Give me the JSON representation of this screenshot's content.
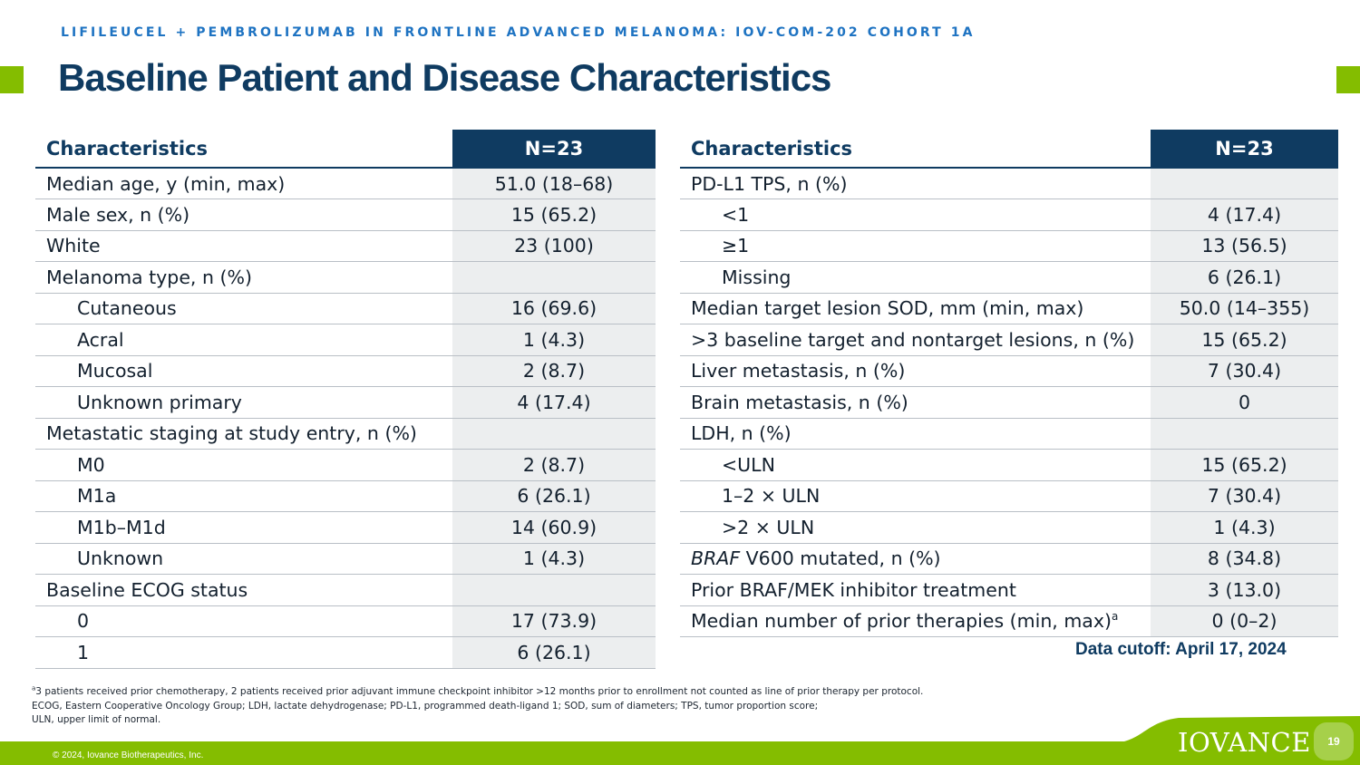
{
  "header": {
    "kicker": "LIFILEUCEL + PEMBROLIZUMAB IN FRONTLINE ADVANCED MELANOMA: IOV-COM-202 COHORT 1A",
    "title": "Baseline Patient and Disease Characteristics"
  },
  "left_table": {
    "col_label": "Characteristics",
    "col_value": "N=23",
    "rows": [
      {
        "label": "Median age, y (min, max)",
        "value": "51.0 (18–68)",
        "indent": false
      },
      {
        "label": "Male sex, n (%)",
        "value": "15 (65.2)",
        "indent": false
      },
      {
        "label": "White",
        "value": "23 (100)",
        "indent": false
      },
      {
        "label": "Melanoma type, n (%)",
        "value": "",
        "indent": false
      },
      {
        "label": "Cutaneous",
        "value": "16 (69.6)",
        "indent": true
      },
      {
        "label": "Acral",
        "value": "1 (4.3)",
        "indent": true
      },
      {
        "label": "Mucosal",
        "value": "2 (8.7)",
        "indent": true
      },
      {
        "label": "Unknown primary",
        "value": "4 (17.4)",
        "indent": true
      },
      {
        "label": "Metastatic staging at study entry, n (%)",
        "value": "",
        "indent": false
      },
      {
        "label": "M0",
        "value": "2 (8.7)",
        "indent": true
      },
      {
        "label": "M1a",
        "value": "6 (26.1)",
        "indent": true
      },
      {
        "label": "M1b–M1d",
        "value": "14 (60.9)",
        "indent": true
      },
      {
        "label": "Unknown",
        "value": "1 (4.3)",
        "indent": true
      },
      {
        "label": "Baseline ECOG status",
        "value": "",
        "indent": false
      },
      {
        "label": "0",
        "value": "17 (73.9)",
        "indent": true
      },
      {
        "label": "1",
        "value": "6 (26.1)",
        "indent": true
      }
    ]
  },
  "right_table": {
    "col_label": "Characteristics",
    "col_value": "N=23",
    "rows": [
      {
        "label": "PD-L1 TPS, n (%)",
        "value": "",
        "indent": false
      },
      {
        "label": "<1",
        "value": "4 (17.4)",
        "indent": true
      },
      {
        "label": "≥1",
        "value": "13 (56.5)",
        "indent": true
      },
      {
        "label": "Missing",
        "value": "6 (26.1)",
        "indent": true
      },
      {
        "label": "Median target lesion SOD, mm (min, max)",
        "value": "50.0 (14–355)",
        "indent": false
      },
      {
        "label": ">3 baseline target and nontarget lesions, n (%)",
        "value": "15 (65.2)",
        "indent": false
      },
      {
        "label": "Liver metastasis, n (%)",
        "value": "7 (30.4)",
        "indent": false
      },
      {
        "label": "Brain metastasis, n (%)",
        "value": "0",
        "indent": false
      },
      {
        "label": "LDH, n (%)",
        "value": "",
        "indent": false
      },
      {
        "label": "<ULN",
        "value": "15 (65.2)",
        "indent": true
      },
      {
        "label": "1–2 × ULN",
        "value": "7 (30.4)",
        "indent": true
      },
      {
        "label": ">2 × ULN",
        "value": "1 (4.3)",
        "indent": true
      },
      {
        "label_italic": "BRAF",
        "label": " V600 mutated, n (%)",
        "value": "8 (34.8)",
        "indent": false
      },
      {
        "label": "Prior BRAF/MEK inhibitor treatment",
        "value": "3 (13.0)",
        "indent": false
      },
      {
        "label": "Median number of prior therapies (min, max)",
        "label_sup": "a",
        "value": "0 (0–2)",
        "indent": false
      }
    ]
  },
  "cutoff": "Data cutoff: April 17, 2024",
  "footnotes": {
    "line1_sup": "a",
    "line1": "3 patients received prior chemotherapy, 2 patients received prior adjuvant immune checkpoint inhibitor >12 months prior to enrollment not counted as line of prior therapy per protocol.",
    "line2": "ECOG, Eastern Cooperative Oncology Group; LDH, lactate dehydrogenase; PD-L1, programmed death-ligand 1; SOD, sum of diameters; TPS, tumor proportion score;",
    "line3": "ULN, upper limit of normal."
  },
  "footer": {
    "copyright": "© 2024, Iovance Biotherapeutics, Inc.",
    "logo_text": "IOVANCE",
    "page_number": "19"
  },
  "colors": {
    "navy": "#0f3b61",
    "blue_kicker": "#1e73c2",
    "green": "#84bd00",
    "value_cell_bg": "#eceeef"
  }
}
